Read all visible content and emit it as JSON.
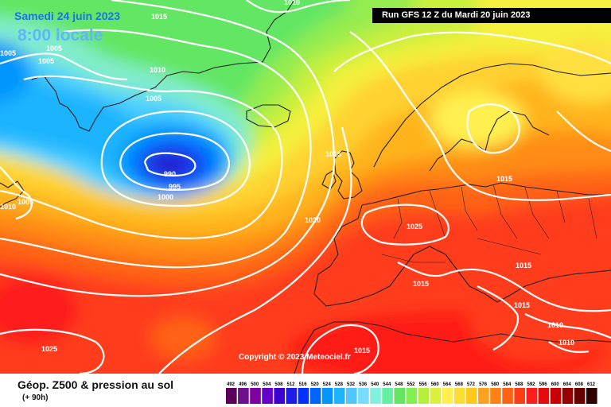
{
  "header": {
    "date": "Samedi 24 juin 2023",
    "local_time": "8:00 locale",
    "run_info": "Run GFS 12 Z du Mardi 20 juin 2023"
  },
  "copyright": "Copyright © 2023 Meteociel.fr",
  "footer": {
    "product_title": "Géop. Z500 & pression au sol",
    "lead_time": "(+ 90h)"
  },
  "isobar_labels": [
    "1015",
    "1010",
    "1005",
    "1010",
    "1005",
    "1005",
    "1005",
    "1010",
    "1005",
    "990",
    "995",
    "1000",
    "1015",
    "1020",
    "1025",
    "1015",
    "1015",
    "1015",
    "1015",
    "1010",
    "1010",
    "1025",
    "1015"
  ],
  "legend": {
    "ticks": [
      "492",
      "496",
      "500",
      "504",
      "508",
      "512",
      "516",
      "520",
      "524",
      "528",
      "532",
      "536",
      "540",
      "544",
      "548",
      "552",
      "556",
      "560",
      "564",
      "568",
      "572",
      "576",
      "580",
      "584",
      "588",
      "592",
      "596",
      "600",
      "604",
      "608",
      "612"
    ],
    "colors": [
      "#5a005a",
      "#6e0f8c",
      "#7d00a0",
      "#6400c8",
      "#3c00d2",
      "#1e1ee6",
      "#0032ff",
      "#0064ff",
      "#0096ff",
      "#1eb4ff",
      "#50c8ff",
      "#78dcff",
      "#82f0dc",
      "#64f0a0",
      "#64e664",
      "#82f050",
      "#b4f03c",
      "#dcf03c",
      "#fff050",
      "#ffdc32",
      "#ffc81e",
      "#ffa01e",
      "#ff8214",
      "#ff6414",
      "#ff3c14",
      "#ff1e1e",
      "#e60a0a",
      "#c80000",
      "#960000",
      "#640000",
      "#300000"
    ]
  },
  "colors": {
    "low_core": "#2020d0",
    "warm_field": "#ff3c28",
    "isobar": "#ffffff",
    "coastline": "#202020"
  }
}
